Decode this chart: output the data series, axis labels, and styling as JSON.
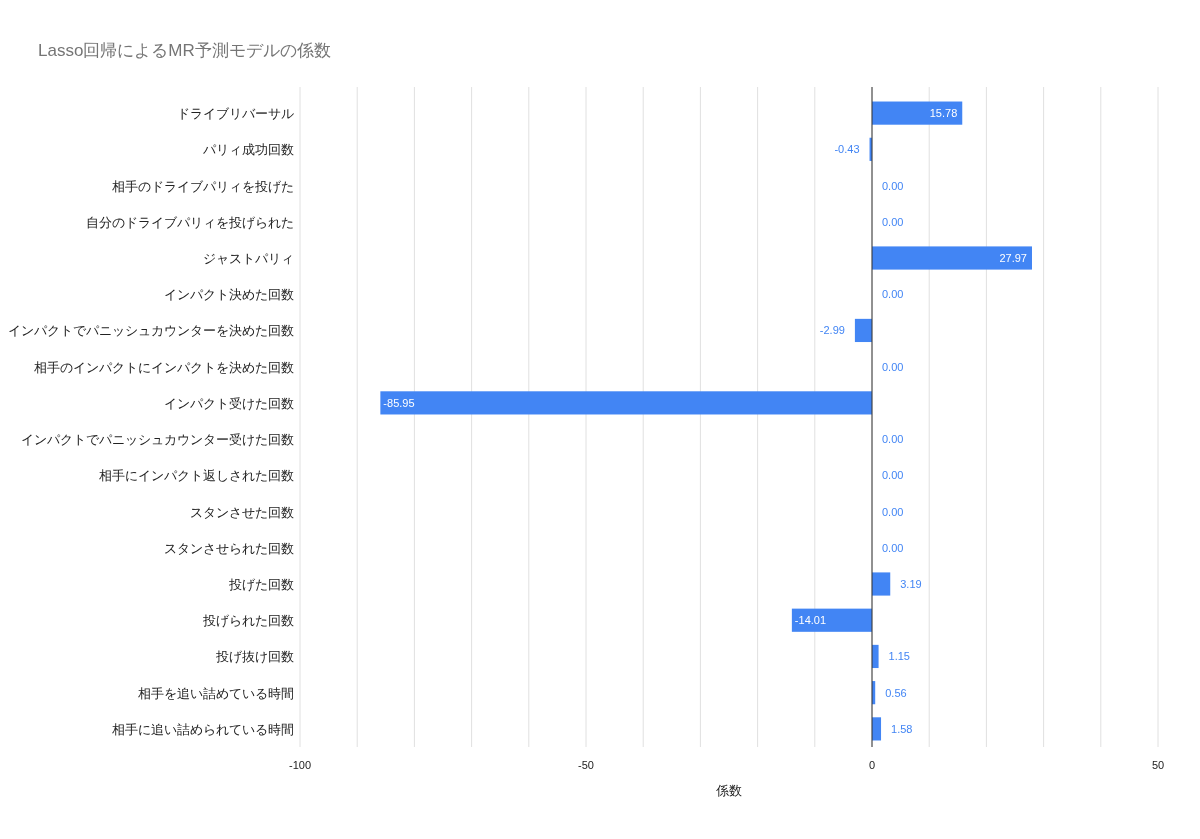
{
  "chart_data": {
    "type": "bar",
    "orientation": "horizontal",
    "title": "Lasso回帰によるMR予測モデルの係数",
    "xlabel": "係数",
    "categories": [
      "ドライブリバーサル",
      "パリィ成功回数",
      "相手のドライブパリィを投げた",
      "自分のドライブパリィを投げられた",
      "ジャストパリィ",
      "インパクト決めた回数",
      "インパクトでパニッシュカウンターを決めた回数",
      "相手のインパクトにインパクトを決めた回数",
      "インパクト受けた回数",
      "インパクトでパニッシュカウンター受けた回数",
      "相手にインパクト返しされた回数",
      "スタンさせた回数",
      "スタンさせられた回数",
      "投げた回数",
      "投げられた回数",
      "投げ抜け回数",
      "相手を追い詰めている時間",
      "相手に追い詰められている時間"
    ],
    "values": [
      15.78,
      -0.43,
      0,
      0,
      27.97,
      0,
      -2.99,
      0,
      -85.95,
      0,
      0,
      0,
      0,
      3.19,
      -14.01,
      1.15,
      0.56,
      1.58
    ],
    "value_labels": [
      "15.78",
      "-0.43",
      "0.00",
      "0.00",
      "27.97",
      "0.00",
      "-2.99",
      "0.00",
      "-85.95",
      "0.00",
      "0.00",
      "0.00",
      "0.00",
      "3.19",
      "-14.01",
      "1.15",
      "0.56",
      "1.58"
    ],
    "color": "#4285f4",
    "xlim": [
      -100,
      50
    ],
    "xticks": [
      -100,
      {
        "value": -90,
        "label": null
      },
      {
        "value": -80,
        "label": null
      },
      {
        "value": -70,
        "label": null
      },
      {
        "value": -60,
        "label": null
      },
      -50,
      {
        "value": -40,
        "label": null
      },
      {
        "value": -30,
        "label": null
      },
      {
        "value": -20,
        "label": null
      },
      {
        "value": -10,
        "label": null
      },
      0,
      {
        "value": 10,
        "label": null
      },
      {
        "value": 20,
        "label": null
      },
      {
        "value": 30,
        "label": null
      },
      {
        "value": 40,
        "label": null
      },
      50
    ],
    "grid": "x"
  }
}
